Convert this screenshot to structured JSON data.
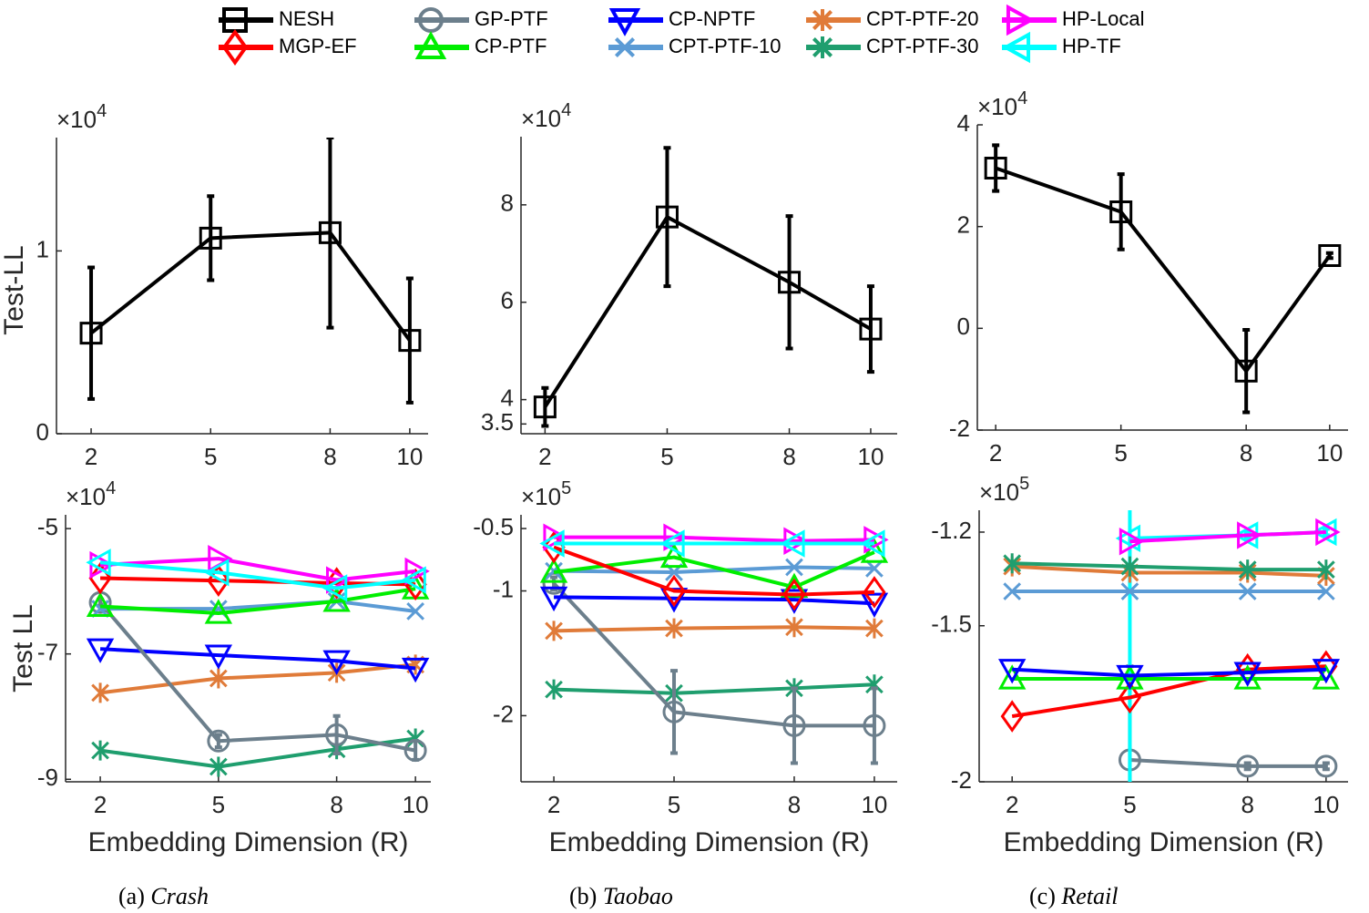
{
  "legend": [
    {
      "name": "NESH",
      "color": "#000000",
      "marker": "square"
    },
    {
      "name": "MGP-EF",
      "color": "#ff0000",
      "marker": "diamond"
    },
    {
      "name": "GP-PTF",
      "color": "#6c7f8c",
      "marker": "circle"
    },
    {
      "name": "CP-PTF",
      "color": "#00ee00",
      "marker": "triangle-up"
    },
    {
      "name": "CP-NPTF",
      "color": "#0000ff",
      "marker": "triangle-down"
    },
    {
      "name": "CPT-PTF-10",
      "color": "#5b9bd5",
      "marker": "x"
    },
    {
      "name": "CPT-PTF-20",
      "color": "#e07b39",
      "marker": "asterisk"
    },
    {
      "name": "CPT-PTF-30",
      "color": "#1f9e6e",
      "marker": "asterisk"
    },
    {
      "name": "HP-Local",
      "color": "#ff00ff",
      "marker": "triangle-right"
    },
    {
      "name": "HP-TF",
      "color": "#00ffff",
      "marker": "triangle-left"
    }
  ],
  "captions": [
    {
      "label": "(a)",
      "name": "Crash"
    },
    {
      "label": "(b)",
      "name": "Taobao"
    },
    {
      "label": "(c)",
      "name": "Retail"
    }
  ],
  "chart_data": [
    {
      "type": "line",
      "ylabel": "Test-LL",
      "y_scale": {
        "base": "×10",
        "exponent": "4"
      },
      "x": [
        2,
        5,
        8,
        10
      ],
      "xlim": [
        1.13,
        10.46
      ],
      "xticks": [
        2,
        5,
        8,
        10
      ],
      "ylim": [
        0,
        1.62
      ],
      "yticks": [
        0,
        1
      ],
      "series": [
        {
          "name": "NESH",
          "color": "#000000",
          "marker": "square",
          "values": [
            0.55,
            1.07,
            1.1,
            0.51
          ],
          "errors": [
            0.36,
            0.23,
            0.52,
            0.34
          ]
        }
      ]
    },
    {
      "type": "line",
      "y_scale": {
        "base": "×10",
        "exponent": "4"
      },
      "x": [
        2,
        5,
        8,
        10
      ],
      "xlim": [
        1.41,
        10.65
      ],
      "xticks": [
        2,
        5,
        8,
        10
      ],
      "ylim": [
        3.3,
        9.4
      ],
      "yticks": [
        3.5,
        4,
        6,
        8
      ],
      "series": [
        {
          "name": "NESH",
          "color": "#000000",
          "marker": "square",
          "values": [
            3.85,
            7.75,
            6.41,
            5.45
          ],
          "errors": [
            0.39,
            1.42,
            1.36,
            0.88
          ]
        }
      ]
    },
    {
      "type": "line",
      "y_scale": {
        "base": "×10",
        "exponent": "4"
      },
      "x": [
        2,
        5,
        8,
        10
      ],
      "xlim": [
        1.56,
        10.44
      ],
      "xticks": [
        2,
        5,
        8,
        10
      ],
      "ylim": [
        -2,
        4
      ],
      "yticks": [
        -2,
        0,
        2,
        4
      ],
      "series": [
        {
          "name": "NESH",
          "color": "#000000",
          "marker": "square",
          "values": [
            3.15,
            2.29,
            -0.84,
            1.43
          ],
          "errors": [
            0.45,
            0.74,
            0.81,
            0.05
          ]
        }
      ]
    },
    {
      "type": "line",
      "ylabel": "Test LL",
      "xlabel": "Embedding Dimension (R)",
      "y_scale": {
        "base": "×10",
        "exponent": "4"
      },
      "x": [
        2,
        5,
        8,
        10
      ],
      "xlim": [
        1.12,
        10.39
      ],
      "xticks": [
        2,
        5,
        8,
        10
      ],
      "ylim": [
        -9.04,
        -4.78
      ],
      "yticks": [
        -9,
        -7,
        -5
      ],
      "series": [
        {
          "name": "CPT-PTF-30",
          "color": "#1f9e6e",
          "marker": "asterisk",
          "values": [
            -8.54,
            -8.8,
            -8.52,
            -8.35
          ]
        },
        {
          "name": "CPT-PTF-20",
          "color": "#e07b39",
          "marker": "asterisk",
          "values": [
            -7.62,
            -7.39,
            -7.3,
            -7.17
          ]
        },
        {
          "name": "CP-NPTF",
          "color": "#0000ff",
          "marker": "triangle-down",
          "values": [
            -6.92,
            -7.02,
            -7.11,
            -7.23
          ]
        },
        {
          "name": "GP-PTF",
          "color": "#6c7f8c",
          "marker": "circle",
          "values": [
            -6.18,
            -8.39,
            -8.29,
            -8.54
          ],
          "errors": [
            0.05,
            0.1,
            0.3,
            0.15
          ]
        },
        {
          "name": "CPT-PTF-10",
          "color": "#5b9bd5",
          "marker": "x",
          "values": [
            -6.28,
            -6.28,
            -6.16,
            -6.32
          ]
        },
        {
          "name": "CP-PTF",
          "color": "#00ee00",
          "marker": "triangle-up",
          "values": [
            -6.24,
            -6.35,
            -6.16,
            -5.96
          ]
        },
        {
          "name": "MGP-EF",
          "color": "#ff0000",
          "marker": "diamond",
          "values": [
            -5.79,
            -5.83,
            -5.87,
            -5.89
          ]
        },
        {
          "name": "HP-Local",
          "color": "#ff00ff",
          "marker": "triangle-right",
          "values": [
            -5.58,
            -5.48,
            -5.82,
            -5.68
          ]
        },
        {
          "name": "HP-TF",
          "color": "#00ffff",
          "marker": "triangle-left",
          "values": [
            -5.54,
            -5.7,
            -5.95,
            -5.82
          ]
        }
      ]
    },
    {
      "type": "line",
      "xlabel": "Embedding Dimension (R)",
      "y_scale": {
        "base": "×10",
        "exponent": "5"
      },
      "x": [
        2,
        5,
        8,
        10
      ],
      "xlim": [
        1.18,
        10.57
      ],
      "xticks": [
        2,
        5,
        8,
        10
      ],
      "ylim": [
        -2.53,
        -0.39
      ],
      "yticks": [
        -2,
        -1,
        -0.5
      ],
      "series": [
        {
          "name": "CPT-PTF-30",
          "color": "#1f9e6e",
          "marker": "asterisk",
          "values": [
            -1.79,
            -1.82,
            -1.78,
            -1.75
          ]
        },
        {
          "name": "CPT-PTF-20",
          "color": "#e07b39",
          "marker": "asterisk",
          "values": [
            -1.32,
            -1.3,
            -1.29,
            -1.3
          ]
        },
        {
          "name": "GP-PTF",
          "color": "#6c7f8c",
          "marker": "circle",
          "values": [
            -0.94,
            -1.97,
            -2.08,
            -2.08
          ],
          "errors": [
            0.05,
            0.33,
            0.3,
            0.3
          ]
        },
        {
          "name": "CP-NPTF",
          "color": "#0000ff",
          "marker": "triangle-down",
          "values": [
            -1.05,
            -1.06,
            -1.07,
            -1.1
          ]
        },
        {
          "name": "CPT-PTF-10",
          "color": "#5b9bd5",
          "marker": "x",
          "values": [
            -0.84,
            -0.85,
            -0.81,
            -0.82
          ]
        },
        {
          "name": "CP-PTF",
          "color": "#00ee00",
          "marker": "triangle-up",
          "values": [
            -0.85,
            -0.73,
            -0.97,
            -0.69
          ]
        },
        {
          "name": "MGP-EF",
          "color": "#ff0000",
          "marker": "diamond",
          "values": [
            -0.65,
            -1.0,
            -1.03,
            -1.01
          ]
        },
        {
          "name": "HP-Local",
          "color": "#ff00ff",
          "marker": "triangle-right",
          "values": [
            -0.57,
            -0.57,
            -0.6,
            -0.59
          ]
        },
        {
          "name": "HP-TF",
          "color": "#00ffff",
          "marker": "triangle-left",
          "values": [
            -0.62,
            -0.62,
            -0.62,
            -0.62
          ]
        }
      ]
    },
    {
      "type": "line",
      "xlabel": "Embedding Dimension (R)",
      "y_scale": {
        "base": "×10",
        "exponent": "5"
      },
      "x": [
        2,
        5,
        8,
        10
      ],
      "xlim": [
        1.16,
        10.56
      ],
      "xticks": [
        2,
        5,
        8,
        10
      ],
      "ylim": [
        -2,
        -1.13
      ],
      "yticks": [
        -2,
        -1.5,
        -1.2
      ],
      "series": [
        {
          "name": "GP-PTF",
          "color": "#6c7f8c",
          "marker": "circle",
          "values": [
            null,
            -1.93,
            -1.95,
            -1.95
          ],
          "errors": [
            null,
            0.3,
            0.01,
            0.01
          ]
        },
        {
          "name": "HP-TF",
          "color": "#00ffff",
          "marker": "triangle-left",
          "values": [
            null,
            -1.22,
            -1.21,
            -1.2
          ],
          "errors": [
            null,
            0.8,
            0.01,
            0.01
          ]
        },
        {
          "name": "MGP-EF",
          "color": "#ff0000",
          "marker": "diamond",
          "values": [
            -1.79,
            -1.73,
            -1.64,
            -1.63
          ]
        },
        {
          "name": "CP-PTF",
          "color": "#00ee00",
          "marker": "triangle-up",
          "values": [
            -1.67,
            -1.67,
            -1.67,
            -1.67
          ]
        },
        {
          "name": "CP-NPTF",
          "color": "#0000ff",
          "marker": "triangle-down",
          "values": [
            -1.64,
            -1.66,
            -1.65,
            -1.64
          ]
        },
        {
          "name": "CPT-PTF-10",
          "color": "#5b9bd5",
          "marker": "x",
          "values": [
            -1.39,
            -1.39,
            -1.39,
            -1.39
          ]
        },
        {
          "name": "CPT-PTF-20",
          "color": "#e07b39",
          "marker": "asterisk",
          "values": [
            -1.31,
            -1.33,
            -1.33,
            -1.34
          ]
        },
        {
          "name": "CPT-PTF-30",
          "color": "#1f9e6e",
          "marker": "asterisk",
          "values": [
            -1.3,
            -1.31,
            -1.32,
            -1.32
          ]
        },
        {
          "name": "HP-Local",
          "color": "#ff00ff",
          "marker": "triangle-right",
          "values": [
            null,
            -1.23,
            -1.21,
            -1.2
          ]
        }
      ]
    }
  ]
}
